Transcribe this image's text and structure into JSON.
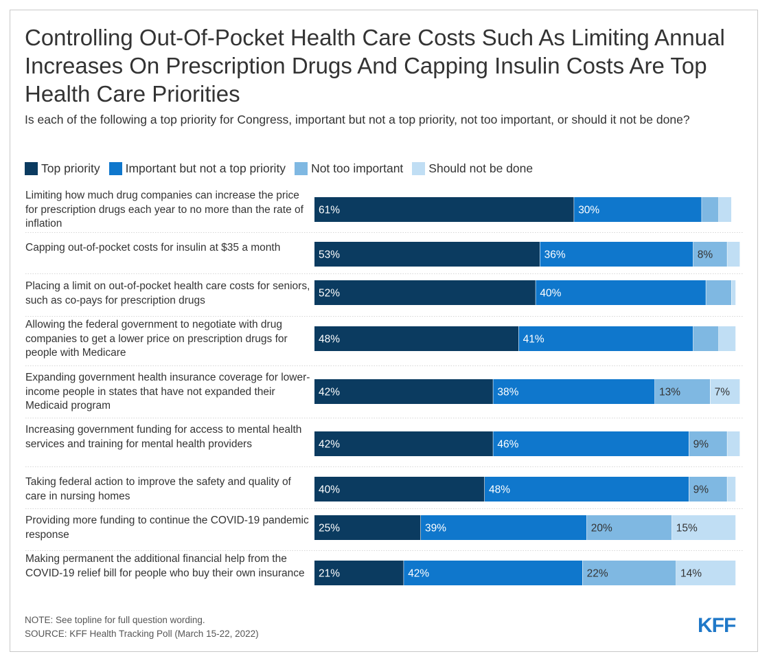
{
  "chart_data": {
    "type": "bar",
    "orientation": "horizontal",
    "stacked": true,
    "title": "Controlling Out-Of-Pocket Health Care Costs Such As Limiting Annual Increases On Prescription Drugs And Capping Insulin Costs Are Top Health Care Priorities",
    "subtitle": "Is each of the following a top priority for Congress, important but not a top priority, not too important, or should it not be done?",
    "legend_placement": "top-left",
    "grid": false,
    "xlim": [
      0,
      100
    ],
    "categories": [
      "Limiting how much drug companies can increase the price for prescription drugs each year to no more than the rate of inflation",
      "Capping out-of-pocket costs for insulin at $35 a month",
      "Placing a limit on out-of-pocket health care costs for seniors, such as co-pays for prescription drugs",
      "Allowing the federal government to negotiate with drug companies to get a lower price on prescription drugs for people with Medicare",
      "Expanding government health insurance coverage for lower-income people in states that have not expanded their Medicaid program",
      "Increasing government funding for access to mental health services and training for mental health providers",
      "Taking federal action to improve the safety and quality of care in nursing homes",
      "Providing more funding to continue the COVID-19 pandemic response",
      "Making permanent the additional financial help from the COVID-19 relief bill for people who buy their own insurance"
    ],
    "series": [
      {
        "name": "Top priority",
        "color": "#0b3b60",
        "text_color": "#ffffff",
        "values": [
          61,
          53,
          52,
          48,
          42,
          42,
          40,
          25,
          21
        ]
      },
      {
        "name": "Important but not a top priority",
        "color": "#0f77cc",
        "text_color": "#ffffff",
        "values": [
          30,
          36,
          40,
          41,
          38,
          46,
          48,
          39,
          42
        ]
      },
      {
        "name": "Not too important",
        "color": "#7fb8e2",
        "text_color": "#333333",
        "values": [
          4,
          8,
          6,
          6,
          13,
          9,
          9,
          20,
          22
        ]
      },
      {
        "name": "Should not be done",
        "color": "#c0def4",
        "text_color": "#333333",
        "values": [
          3,
          3,
          1,
          4,
          7,
          3,
          2,
          15,
          14
        ]
      }
    ],
    "data_labels": [
      [
        "61%",
        "30%",
        "",
        ""
      ],
      [
        "53%",
        "36%",
        "8%",
        ""
      ],
      [
        "52%",
        "40%",
        "",
        ""
      ],
      [
        "48%",
        "41%",
        "",
        ""
      ],
      [
        "42%",
        "38%",
        "13%",
        "7%"
      ],
      [
        "42%",
        "46%",
        "9%",
        ""
      ],
      [
        "40%",
        "48%",
        "9%",
        ""
      ],
      [
        "25%",
        "39%",
        "20%",
        "15%"
      ],
      [
        "21%",
        "42%",
        "22%",
        "14%"
      ]
    ]
  },
  "footer": {
    "note": "NOTE: See topline for full question wording.",
    "source": "SOURCE: KFF Health Tracking Poll (March 15-22, 2022)",
    "logo_text": "KFF"
  }
}
